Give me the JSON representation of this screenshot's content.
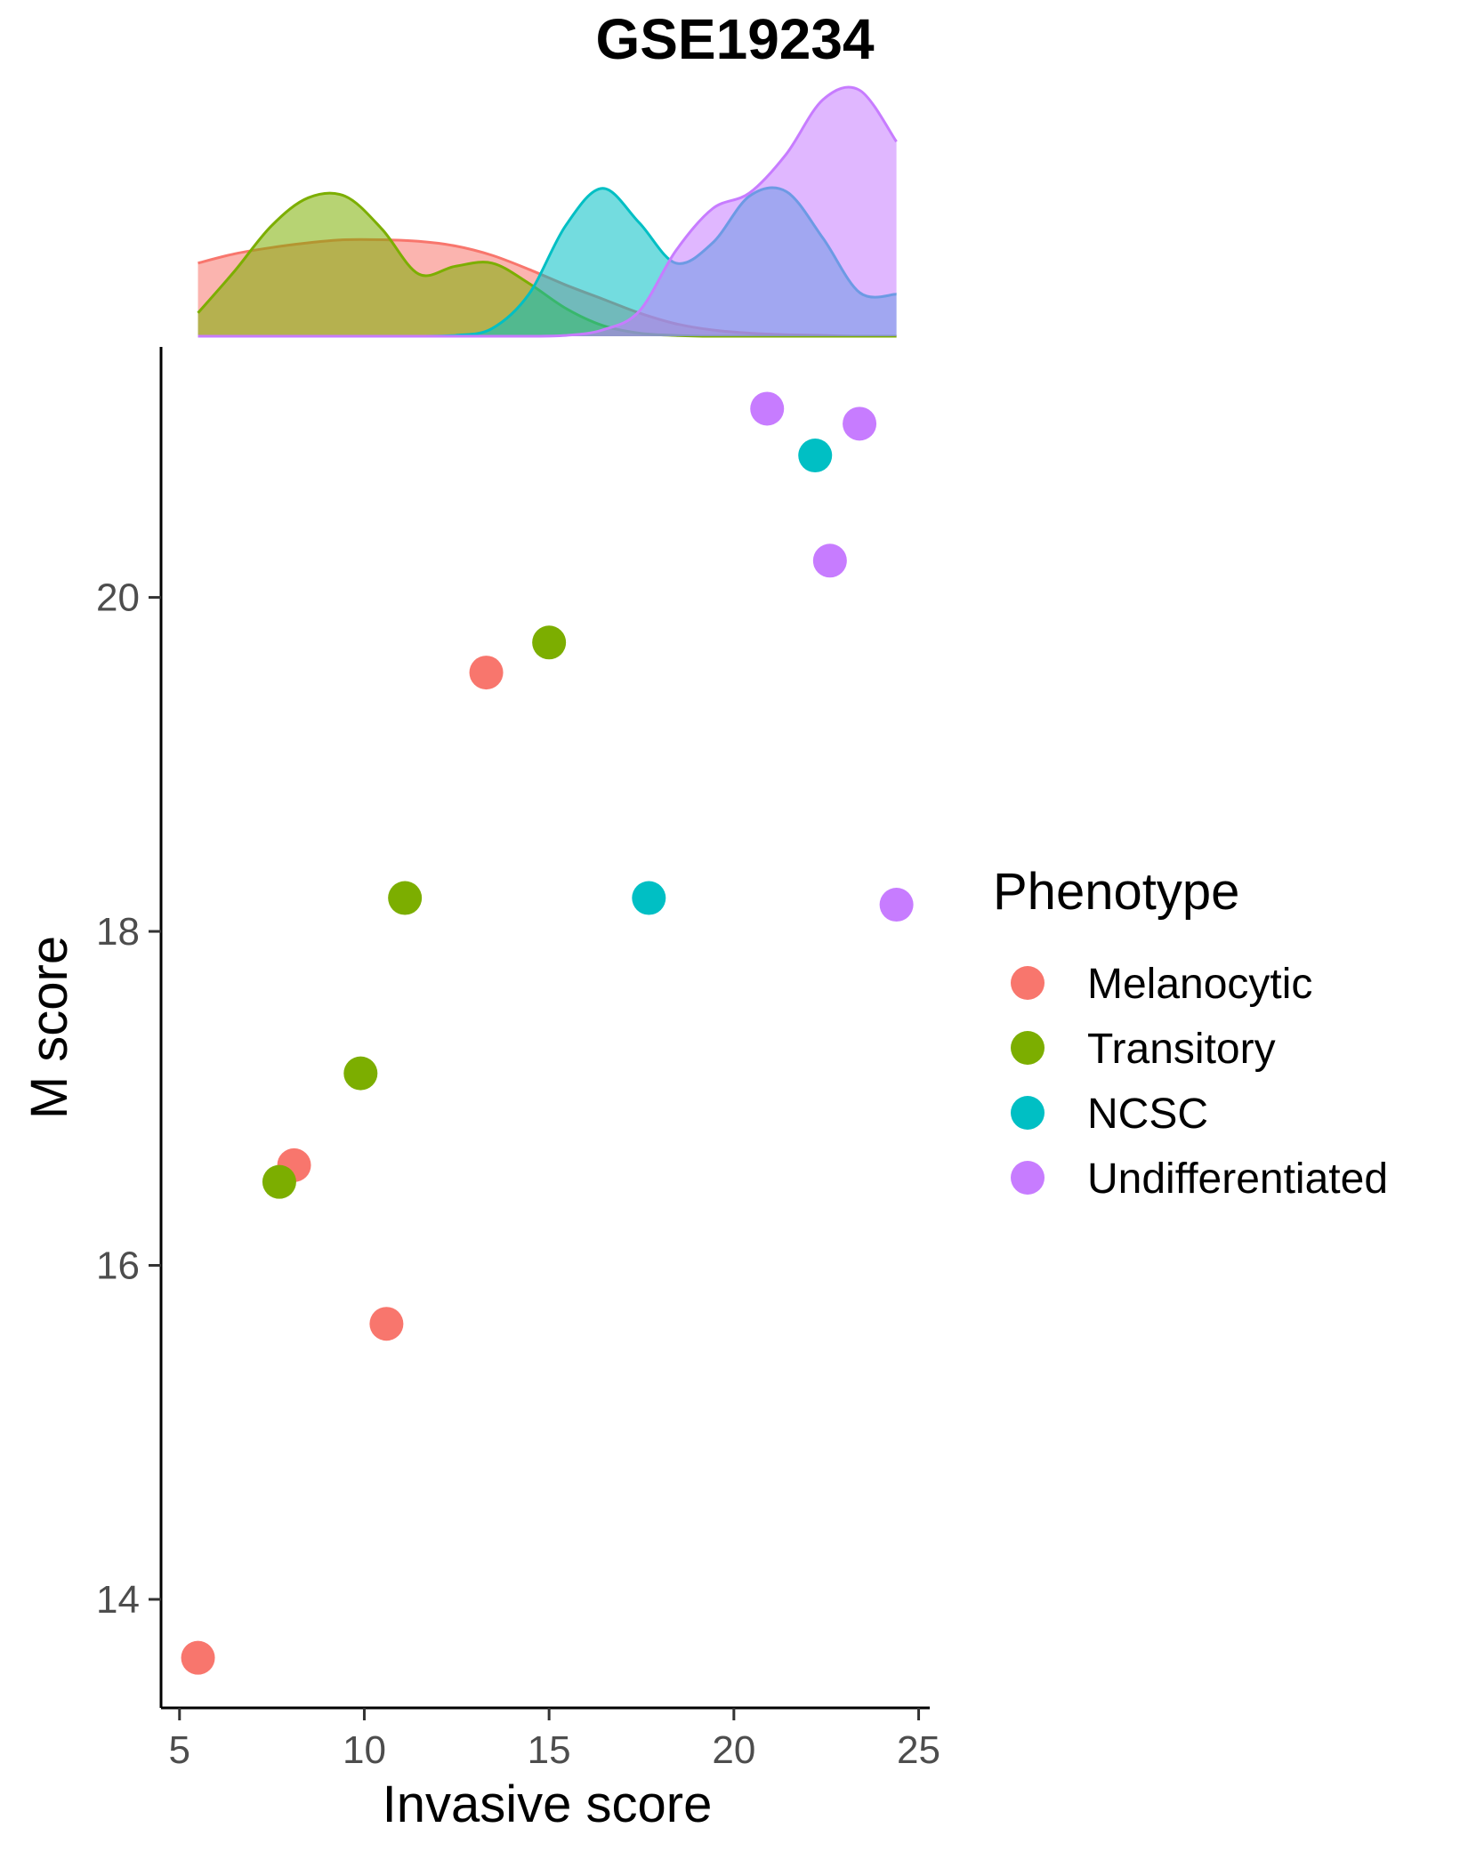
{
  "chart_data": {
    "type": "scatter",
    "title": "GSE19234",
    "xlabel": "Invasive score",
    "ylabel": "M score",
    "xlim": [
      4.5,
      25.3
    ],
    "ylim": [
      13.35,
      21.5
    ],
    "xticks": [
      5,
      10,
      15,
      20,
      25
    ],
    "yticks": [
      14,
      16,
      18,
      20
    ],
    "grid": false,
    "marginal": "density (top)",
    "legend": {
      "title": "Phenotype",
      "position": "right"
    },
    "series": [
      {
        "name": "Melanocytic",
        "color": "#F8766D",
        "points": [
          {
            "x": 5.5,
            "y": 13.65
          },
          {
            "x": 8.1,
            "y": 16.6
          },
          {
            "x": 10.6,
            "y": 15.65
          },
          {
            "x": 13.3,
            "y": 19.55
          }
        ]
      },
      {
        "name": "Transitory",
        "color": "#7CAE00",
        "points": [
          {
            "x": 7.7,
            "y": 16.5
          },
          {
            "x": 9.9,
            "y": 17.15
          },
          {
            "x": 11.1,
            "y": 18.2
          },
          {
            "x": 15.0,
            "y": 19.73
          }
        ]
      },
      {
        "name": "NCSC",
        "color": "#00BFC4",
        "points": [
          {
            "x": 17.7,
            "y": 18.2
          },
          {
            "x": 22.2,
            "y": 20.85
          }
        ]
      },
      {
        "name": "Undifferentiated",
        "color": "#C77CFF",
        "points": [
          {
            "x": 20.9,
            "y": 21.13
          },
          {
            "x": 22.6,
            "y": 20.22
          },
          {
            "x": 23.4,
            "y": 21.04
          },
          {
            "x": 24.4,
            "y": 18.16
          }
        ]
      }
    ],
    "density": {
      "x_range": [
        5.5,
        24.4
      ],
      "series": [
        {
          "name": "Melanocytic",
          "y": [
            0.47,
            0.53,
            0.57,
            0.6,
            0.62,
            0.62,
            0.61,
            0.58,
            0.52,
            0.43,
            0.33,
            0.24,
            0.15,
            0.08,
            0.04,
            0.02,
            0.01,
            0.005,
            0.0,
            0.0
          ]
        },
        {
          "name": "Transitory",
          "y": [
            0.15,
            0.42,
            0.71,
            0.89,
            0.9,
            0.69,
            0.4,
            0.45,
            0.47,
            0.34,
            0.18,
            0.07,
            0.02,
            0.005,
            0.0,
            0.0,
            0.0,
            0.0,
            0.0,
            0.0
          ]
        },
        {
          "name": "NCSC",
          "y": [
            0.0,
            0.0,
            0.0,
            0.0,
            0.0,
            0.0,
            0.0,
            0.005,
            0.05,
            0.27,
            0.71,
            0.95,
            0.73,
            0.47,
            0.6,
            0.9,
            0.93,
            0.63,
            0.28,
            0.27
          ]
        },
        {
          "name": "Undifferentiated",
          "y": [
            0.0,
            0.0,
            0.0,
            0.0,
            0.0,
            0.0,
            0.0,
            0.0,
            0.0,
            0.0,
            0.005,
            0.04,
            0.16,
            0.55,
            0.82,
            0.92,
            1.17,
            1.52,
            1.58,
            1.25
          ]
        }
      ]
    }
  }
}
